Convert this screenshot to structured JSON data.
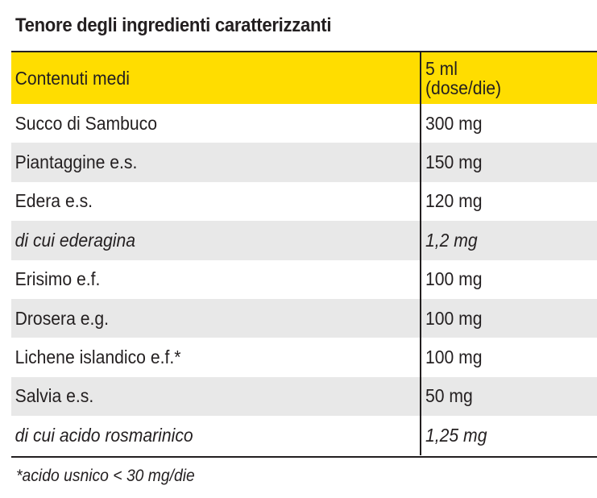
{
  "title": "Tenore degli ingredienti caratterizzanti",
  "colors": {
    "header_background": "#ffdd00",
    "alternate_row_background": "#e8e8e8",
    "text": "#231f20"
  },
  "table": {
    "header": {
      "col1": "Contenuti medi",
      "col2": "5 ml\n(dose/die)"
    },
    "rows": [
      {
        "name": "Succo di Sambuco",
        "amount": "300 mg",
        "italic": false
      },
      {
        "name": "Piantaggine e.s.",
        "amount": "150 mg",
        "italic": false
      },
      {
        "name": "Edera e.s.",
        "amount": "120 mg",
        "italic": false
      },
      {
        "name": "di cui ederagina",
        "amount": "1,2 mg",
        "italic": true
      },
      {
        "name": "Erisimo e.f.",
        "amount": "100 mg",
        "italic": false
      },
      {
        "name": "Drosera e.g.",
        "amount": "100 mg",
        "italic": false
      },
      {
        "name": "Lichene islandico e.f.*",
        "amount": "100 mg",
        "italic": false
      },
      {
        "name": "Salvia e.s.",
        "amount": "50 mg",
        "italic": false
      },
      {
        "name": "di cui acido rosmarinico",
        "amount": "1,25 mg",
        "italic": true
      }
    ]
  },
  "footnote": "*acido usnico < 30 mg/die"
}
